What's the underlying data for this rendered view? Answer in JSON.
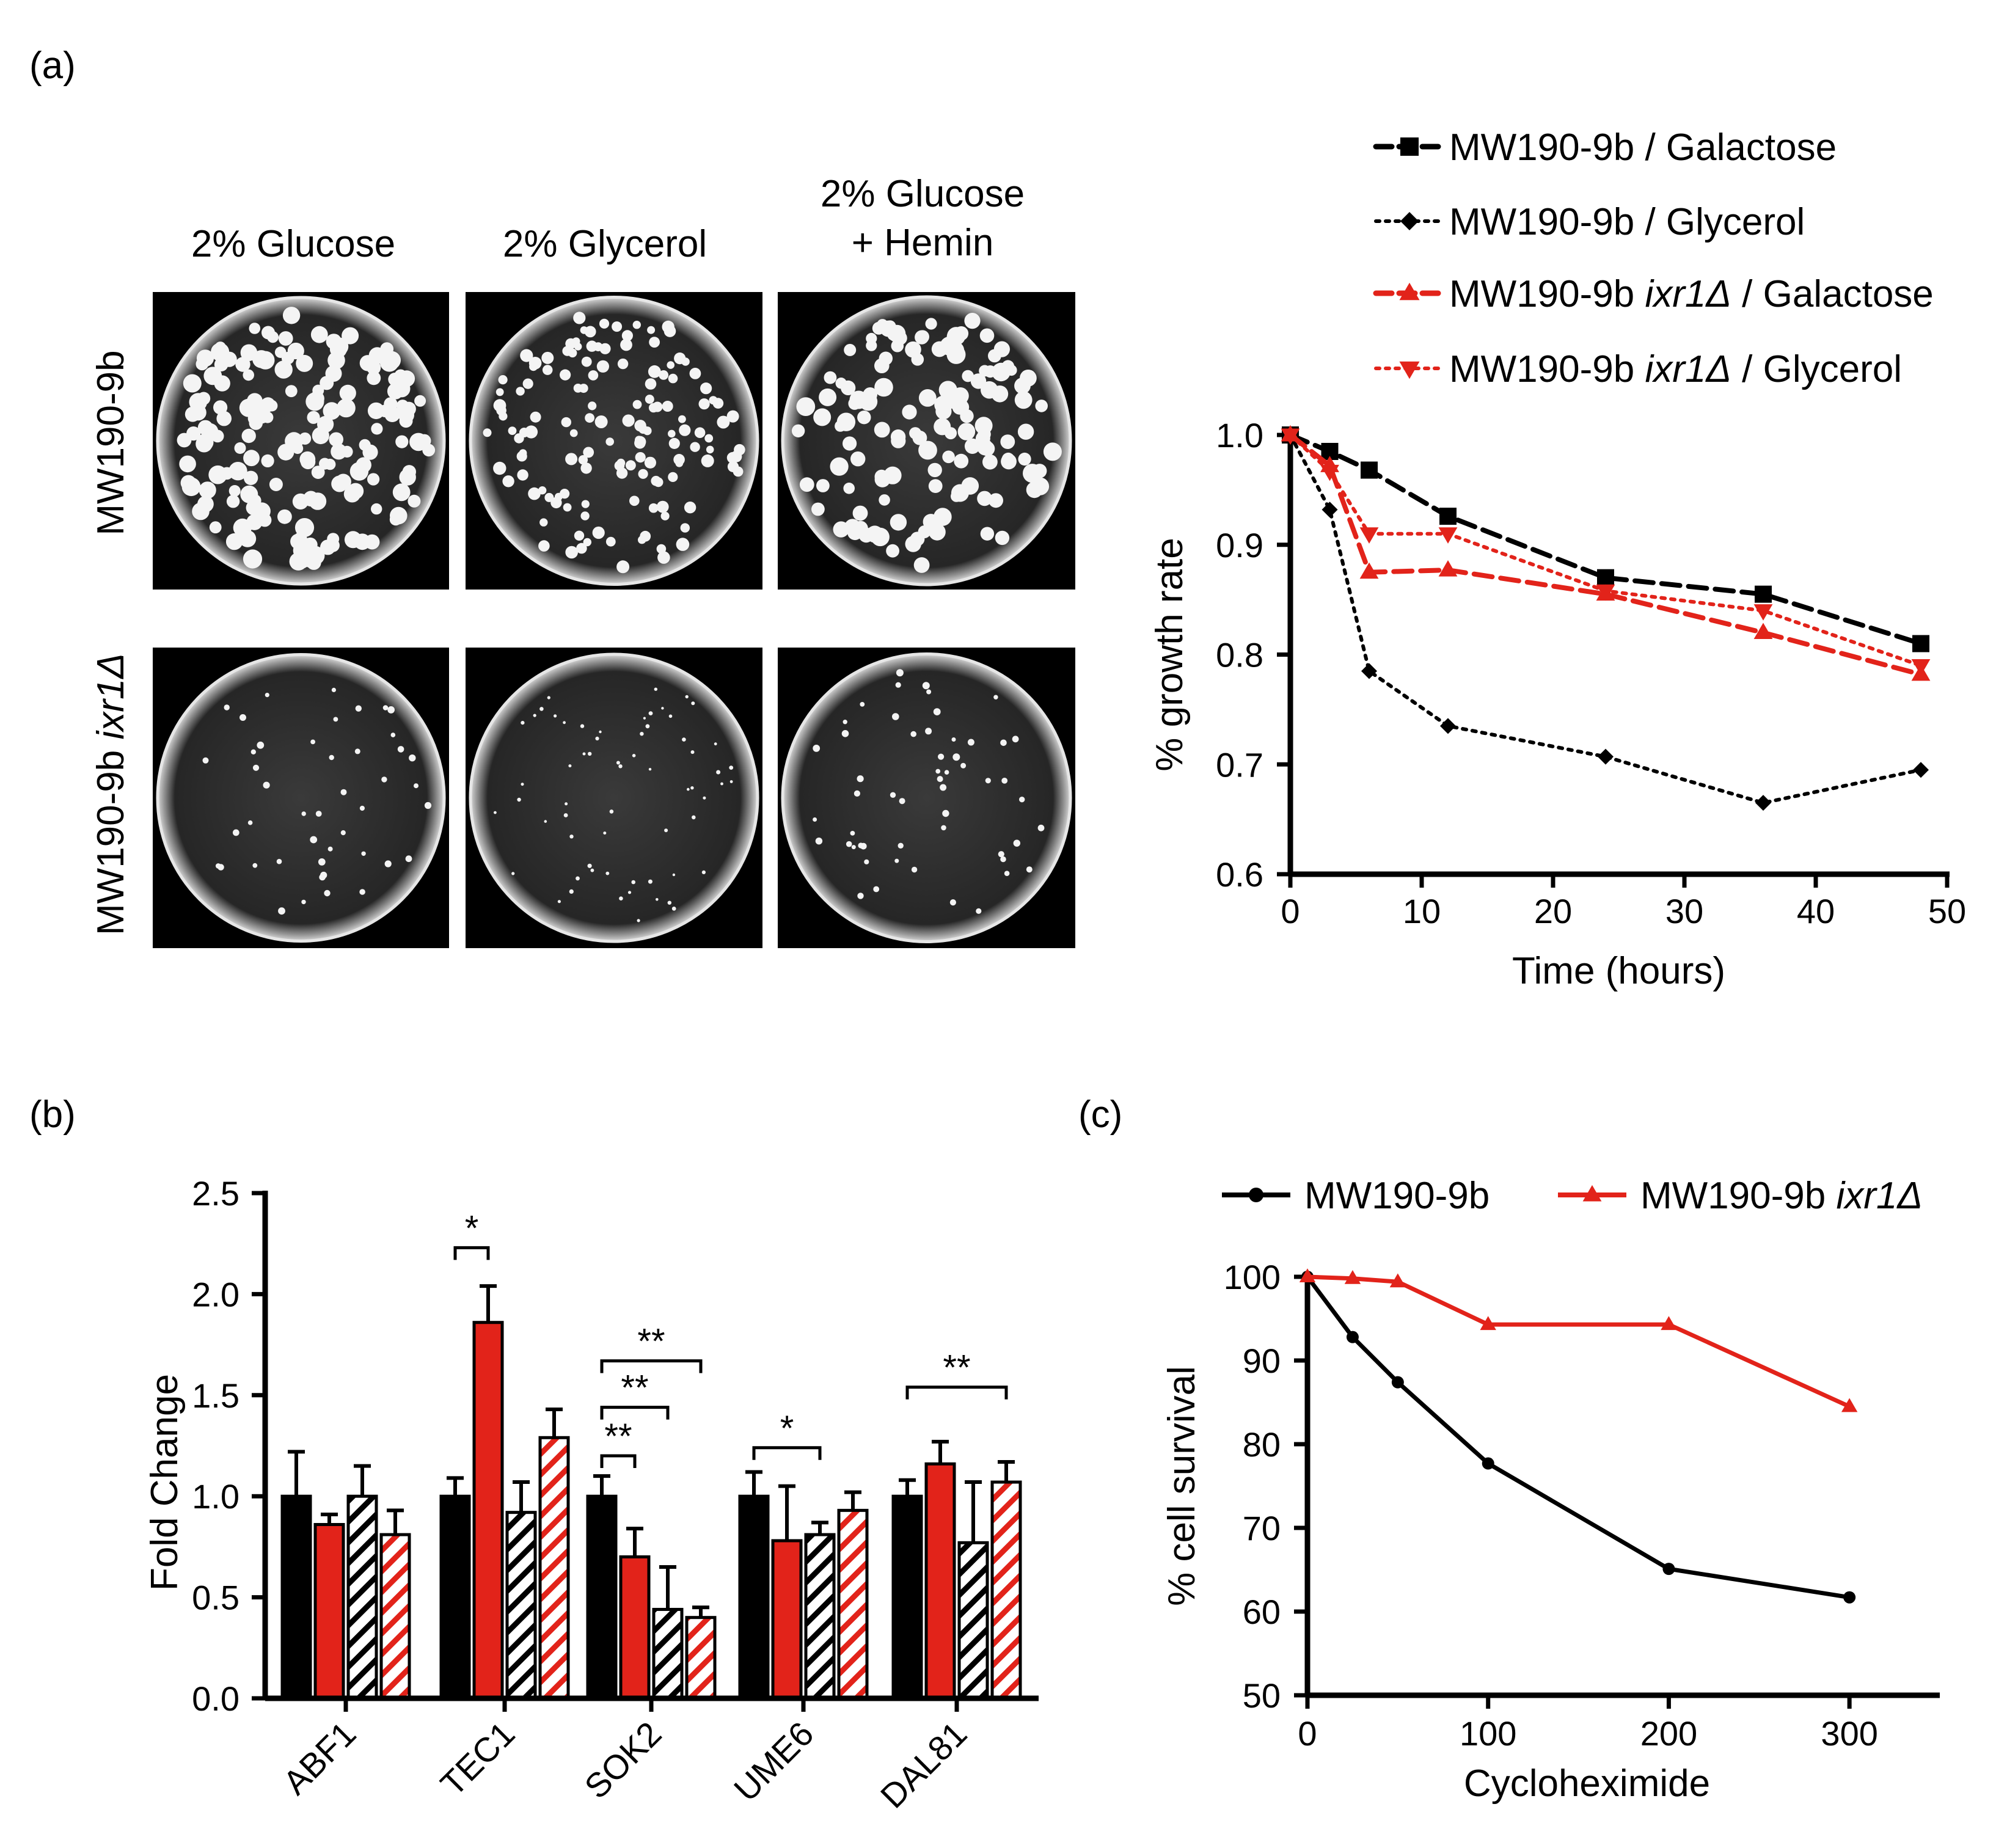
{
  "panels": {
    "a": "(a)",
    "b": "(b)",
    "c": "(c)"
  },
  "plates": {
    "columns": [
      "2% Glucose",
      "2% Glycerol",
      "2% Glucose",
      "+ Hemin"
    ],
    "rows": [
      {
        "label": "MW190-9b",
        "label_italic": ""
      },
      {
        "label": "MW190-9b ",
        "label_italic": "ixr1Δ"
      }
    ],
    "colony_density": [
      [
        0.95,
        0.8,
        0.75
      ],
      [
        0.25,
        0.35,
        0.3
      ]
    ]
  },
  "colors": {
    "black": "#000000",
    "red": "#e2231a",
    "plate_bg": "#000000",
    "plate_glow": "#bfbfbf"
  },
  "chart_data": [
    {
      "id": "a",
      "type": "line",
      "xlabel": "Time (hours)",
      "ylabel": "% growth rate",
      "xlim": [
        0,
        50
      ],
      "ylim": [
        0.6,
        1.0
      ],
      "xticks": [
        0,
        10,
        20,
        30,
        40,
        50
      ],
      "yticks": [
        0.6,
        0.7,
        0.8,
        0.9,
        1.0
      ],
      "ytick_labels": [
        "0.6",
        "0.7",
        "0.8",
        "0.9",
        "1.0"
      ],
      "x": [
        0,
        3,
        6,
        12,
        24,
        36,
        48
      ],
      "legend_position": "top-right",
      "series": [
        {
          "name": "MW190-9b / Galactose",
          "name_italic": "",
          "name_rest": "",
          "color": "#000000",
          "dash": "dashed",
          "marker": "square",
          "values": [
            1.0,
            0.985,
            0.968,
            0.926,
            0.87,
            0.855,
            0.81
          ]
        },
        {
          "name": "MW190-9b / Glycerol",
          "name_italic": "",
          "name_rest": "",
          "color": "#000000",
          "dash": "dotted",
          "marker": "diamond",
          "values": [
            1.0,
            0.932,
            0.785,
            0.735,
            0.707,
            0.665,
            0.695
          ]
        },
        {
          "name": "MW190-9b ",
          "name_italic": "ixr1Δ",
          "name_rest": " / Galactose",
          "color": "#e2231a",
          "dash": "dashed",
          "marker": "triangle-up",
          "values": [
            1.0,
            0.972,
            0.875,
            0.877,
            0.855,
            0.82,
            0.782
          ]
        },
        {
          "name": "MW190-9b ",
          "name_italic": "ixr1Δ",
          "name_rest": " / Glycerol",
          "color": "#e2231a",
          "dash": "dotted",
          "marker": "triangle-down",
          "values": [
            1.0,
            0.967,
            0.91,
            0.91,
            0.858,
            0.84,
            0.79
          ]
        }
      ]
    },
    {
      "id": "b",
      "type": "bar",
      "ylabel": "Fold Change",
      "ylim": [
        0,
        2.5
      ],
      "yticks": [
        0.0,
        0.5,
        1.0,
        1.5,
        2.0,
        2.5
      ],
      "ytick_labels": [
        "0.0",
        "0.5",
        "1.0",
        "1.5",
        "2.0",
        "2.5"
      ],
      "categories": [
        "ABF1",
        "TEC1",
        "SOK2",
        "UME6",
        "DAL81"
      ],
      "series": [
        {
          "fill": "solid",
          "color": "#000000",
          "values": [
            1.0,
            1.0,
            1.0,
            1.0,
            1.0
          ],
          "errors": [
            0.22,
            0.09,
            0.1,
            0.12,
            0.08
          ]
        },
        {
          "fill": "solid",
          "color": "#e2231a",
          "values": [
            0.86,
            1.86,
            0.7,
            0.78,
            1.16
          ],
          "errors": [
            0.05,
            0.18,
            0.14,
            0.27,
            0.11
          ]
        },
        {
          "fill": "hatched",
          "color": "#000000",
          "values": [
            1.0,
            0.92,
            0.44,
            0.81,
            0.77
          ],
          "errors": [
            0.15,
            0.15,
            0.21,
            0.06,
            0.3
          ]
        },
        {
          "fill": "hatched",
          "color": "#e2231a",
          "values": [
            0.81,
            1.29,
            0.4,
            0.93,
            1.07
          ],
          "errors": [
            0.12,
            0.14,
            0.05,
            0.09,
            0.1
          ]
        }
      ],
      "significance": [
        {
          "category": 1,
          "from": 0,
          "to": 1,
          "y": 2.23,
          "label": "*"
        },
        {
          "category": 2,
          "from": 0,
          "to": 3,
          "y": 1.67,
          "label": "**"
        },
        {
          "category": 2,
          "from": 0,
          "to": 2,
          "y": 1.44,
          "label": "**"
        },
        {
          "category": 2,
          "from": 0,
          "to": 1,
          "y": 1.2,
          "label": "**"
        },
        {
          "category": 3,
          "from": 0,
          "to": 2,
          "y": 1.24,
          "label": "*"
        },
        {
          "category": 4,
          "from": 0,
          "to": 3,
          "y": 1.54,
          "label": "**"
        }
      ]
    },
    {
      "id": "c",
      "type": "line",
      "xlabel": "Cycloheximide",
      "ylabel": "% cell survival",
      "xlim": [
        0,
        350
      ],
      "ylim": [
        50,
        100
      ],
      "xticks": [
        0,
        100,
        200,
        300
      ],
      "yticks": [
        50,
        60,
        70,
        80,
        90,
        100
      ],
      "x": [
        0,
        25,
        50,
        100,
        200,
        300
      ],
      "legend_position": "top",
      "series": [
        {
          "name": "MW190-9b",
          "name_italic": "",
          "color": "#000000",
          "marker": "circle",
          "values": [
            100,
            92.8,
            87.4,
            77.7,
            65.1,
            61.7
          ]
        },
        {
          "name": "MW190-9b ",
          "name_italic": "ixr1Δ",
          "color": "#e2231a",
          "marker": "triangle-up",
          "values": [
            100,
            99.8,
            99.4,
            94.3,
            94.3,
            84.5
          ]
        }
      ]
    }
  ]
}
